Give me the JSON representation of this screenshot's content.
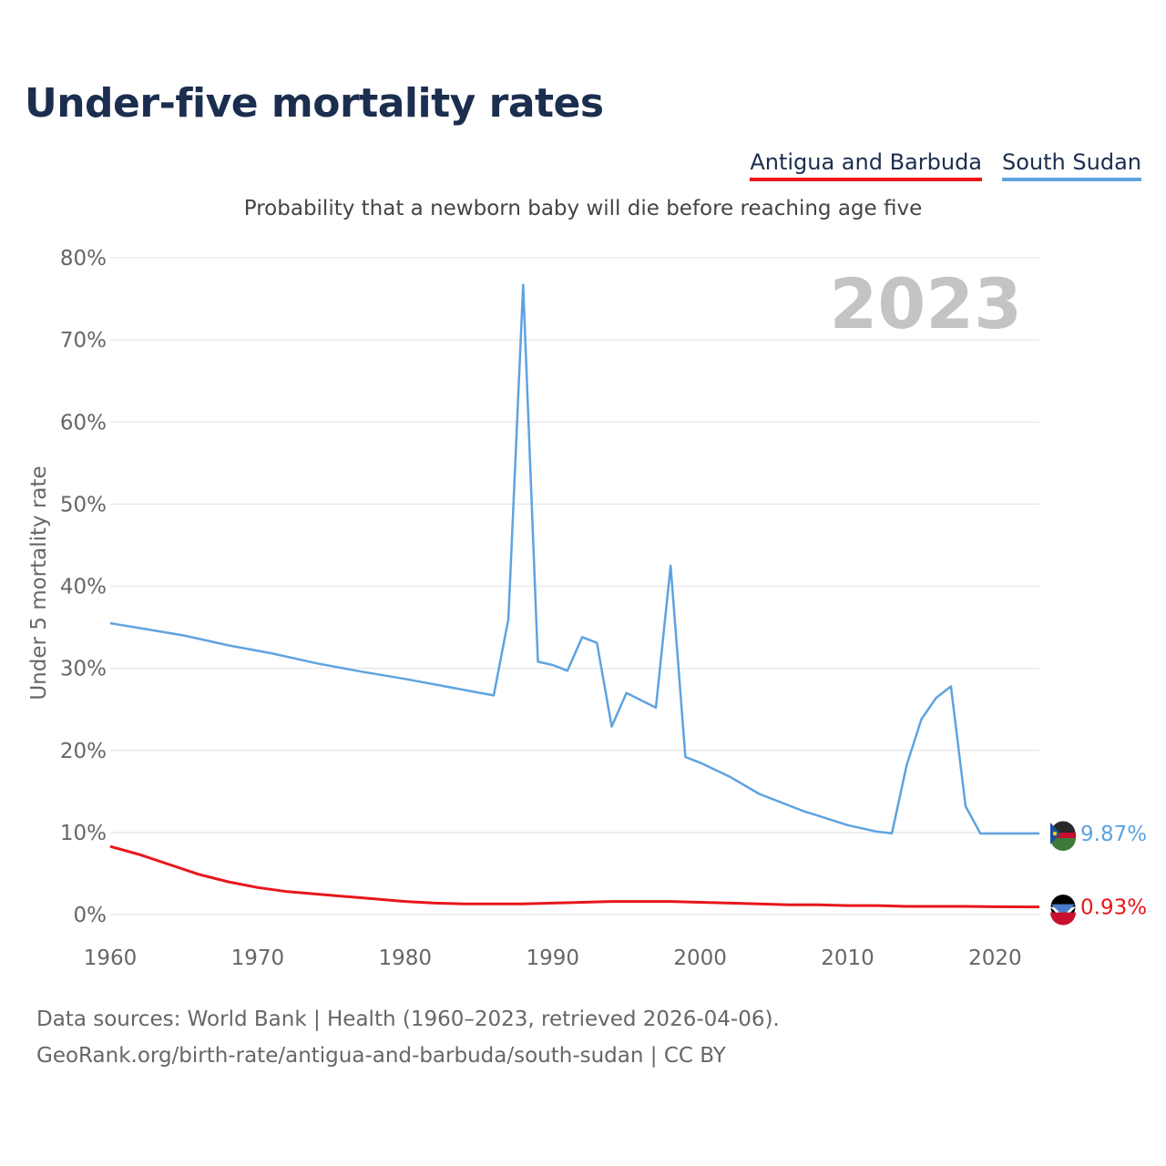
{
  "chart_data": {
    "type": "line",
    "title": "Under-five mortality rates",
    "subtitle": "Probability that a newborn baby will die before reaching age five",
    "ylabel": "Under 5 mortality rate",
    "xlabel": "",
    "year_label": "2023",
    "xlim": [
      1960,
      2023
    ],
    "ylim": [
      0,
      80
    ],
    "x_ticks": [
      "1960",
      "1970",
      "1980",
      "1990",
      "2000",
      "2010",
      "2020"
    ],
    "y_ticks": [
      "0%",
      "10%",
      "20%",
      "30%",
      "40%",
      "50%",
      "60%",
      "70%",
      "80%"
    ],
    "grid": true,
    "legend": "top-right",
    "series": [
      {
        "name": "Antigua and Barbuda",
        "color": "#e8161b",
        "end_label": "0.93%",
        "x": [
          1960,
          1962,
          1964,
          1966,
          1968,
          1970,
          1972,
          1974,
          1976,
          1978,
          1980,
          1982,
          1984,
          1986,
          1988,
          1990,
          1992,
          1994,
          1996,
          1998,
          2000,
          2002,
          2004,
          2006,
          2008,
          2010,
          2012,
          2014,
          2016,
          2018,
          2020,
          2023
        ],
        "y": [
          8.3,
          7.3,
          6.1,
          4.9,
          4.0,
          3.3,
          2.8,
          2.5,
          2.2,
          1.9,
          1.6,
          1.4,
          1.3,
          1.3,
          1.3,
          1.4,
          1.5,
          1.6,
          1.6,
          1.6,
          1.5,
          1.4,
          1.3,
          1.2,
          1.2,
          1.1,
          1.1,
          1.0,
          1.0,
          1.0,
          0.95,
          0.93
        ]
      },
      {
        "name": "South Sudan",
        "color": "#5ea3e0",
        "end_label": "9.87%",
        "x": [
          1960,
          1962,
          1965,
          1968,
          1971,
          1974,
          1977,
          1980,
          1983,
          1986,
          1987,
          1988,
          1989,
          1990,
          1991,
          1992,
          1993,
          1994,
          1995,
          1996,
          1997,
          1998,
          1999,
          2000,
          2002,
          2004,
          2007,
          2010,
          2012,
          2013,
          2014,
          2015,
          2016,
          2017,
          2018,
          2019,
          2020,
          2021,
          2022,
          2023
        ],
        "y": [
          35.5,
          34.9,
          34.0,
          32.8,
          31.8,
          30.6,
          29.6,
          28.7,
          27.7,
          26.7,
          36.0,
          76.7,
          30.8,
          30.4,
          29.7,
          33.8,
          33.1,
          22.9,
          27.0,
          26.1,
          25.2,
          42.5,
          19.2,
          18.5,
          16.8,
          14.7,
          12.6,
          10.9,
          10.1,
          9.9,
          18.2,
          23.8,
          26.4,
          27.8,
          13.2,
          9.87,
          9.87,
          9.87,
          9.87,
          9.87
        ]
      }
    ]
  },
  "footer": {
    "line1": "Data sources: World Bank | Health (1960–2023, retrieved 2026-04-06).",
    "line2": "GeoRank.org/birth-rate/antigua-and-barbuda/south-sudan | CC BY"
  }
}
